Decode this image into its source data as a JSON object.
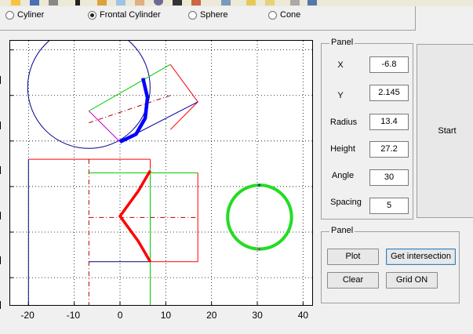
{
  "toolbar": {
    "icons": [
      "open-icon",
      "save-icon",
      "print-icon",
      "pointer-icon",
      "zoom-in-icon",
      "zoom-out-icon",
      "pan-icon",
      "rotate-icon",
      "datacursor-icon",
      "brush-icon",
      "link-icon",
      "colorbar-icon",
      "legend-icon"
    ]
  },
  "shape_options": [
    {
      "label": "Cyliner",
      "selected": false
    },
    {
      "label": "Frontal Cylinder",
      "selected": true
    },
    {
      "label": "Sphere",
      "selected": false
    },
    {
      "label": "Cone",
      "selected": false
    }
  ],
  "params_panel": {
    "title": "Panel",
    "fields": [
      {
        "label": "X",
        "value": "-6.8"
      },
      {
        "label": "Y",
        "value": "2.145"
      },
      {
        "label": "Radius",
        "value": "13.4"
      },
      {
        "label": "Height",
        "value": "27.2"
      },
      {
        "label": "Angle",
        "value": "30"
      },
      {
        "label": "Spacing",
        "value": "5"
      }
    ]
  },
  "start_label": "Start",
  "actions_panel": {
    "title": "Panel",
    "plot_label": "Plot",
    "intersection_label": "Get intersection",
    "clear_label": "Clear",
    "grid_label": "Grid ON"
  },
  "chart_data": {
    "type": "line",
    "xlim": [
      -24,
      42
    ],
    "ylim": [
      -16,
      42
    ],
    "grid": true,
    "x_ticks": [
      "-20",
      "-10",
      "0",
      "10",
      "20",
      "30",
      "40"
    ],
    "y_ticks_visible": false,
    "series": [
      {
        "color": "#00008b",
        "kind": "circle",
        "cx": -6.8,
        "cy": 31.8,
        "r": 13.4
      },
      {
        "color": "#ff0000",
        "kind": "polyline",
        "points": [
          [
            11,
            36.8
          ],
          [
            17,
            28.6
          ],
          [
            11,
            22.5
          ]
        ]
      },
      {
        "color": "#00cc00",
        "kind": "polyline",
        "points": [
          [
            -6.8,
            26.6
          ],
          [
            11,
            36.8
          ]
        ]
      },
      {
        "color": "#0000aa",
        "kind": "polyline",
        "points": [
          [
            17,
            28.6
          ],
          [
            0,
            19.8
          ]
        ]
      },
      {
        "color": "#cc00cc",
        "kind": "polyline",
        "points": [
          [
            -6.8,
            26.6
          ],
          [
            0,
            19.8
          ]
        ]
      },
      {
        "color": "#aa0000",
        "kind": "dashdot",
        "points": [
          [
            -6.8,
            24
          ],
          [
            11,
            30
          ]
        ]
      },
      {
        "color": "#0000ff",
        "kind": "thick-arc",
        "points": [
          [
            5,
            33.8
          ],
          [
            6,
            29.5
          ],
          [
            5.5,
            25
          ],
          [
            3.5,
            21.5
          ],
          [
            0,
            19.8
          ]
        ]
      },
      {
        "color": "#ff0000",
        "kind": "polyline",
        "points": [
          [
            -20,
            16
          ],
          [
            6.6,
            16
          ]
        ]
      },
      {
        "color": "#000080",
        "kind": "polyline",
        "points": [
          [
            -20,
            16
          ],
          [
            -20,
            -16
          ]
        ]
      },
      {
        "color": "#ff0000",
        "kind": "polyline",
        "points": [
          [
            6.6,
            16
          ],
          [
            6.6,
            14
          ]
        ]
      },
      {
        "color": "#00cc00",
        "kind": "polyline",
        "points": [
          [
            6.6,
            14
          ],
          [
            6.6,
            -16
          ]
        ]
      },
      {
        "color": "#aa0000",
        "kind": "dashdot",
        "points": [
          [
            -6.8,
            16
          ],
          [
            -6.8,
            -16
          ]
        ]
      },
      {
        "color": "#00cc00",
        "kind": "polyline",
        "points": [
          [
            -6.8,
            13
          ],
          [
            17,
            13
          ]
        ]
      },
      {
        "color": "#ff0000",
        "kind": "polyline",
        "points": [
          [
            17,
            13
          ],
          [
            17,
            -6.5
          ],
          [
            6.6,
            -6.5
          ]
        ]
      },
      {
        "color": "#000080",
        "kind": "polyline",
        "points": [
          [
            -6.8,
            -6.5
          ],
          [
            6.6,
            -6.5
          ]
        ]
      },
      {
        "color": "#aa0000",
        "kind": "dashdot",
        "points": [
          [
            -6.8,
            3.2
          ],
          [
            17,
            3.2
          ]
        ]
      },
      {
        "color": "#ff0000",
        "kind": "thick-poly",
        "points": [
          [
            6.6,
            13.5
          ],
          [
            4,
            9
          ],
          [
            0,
            3.5
          ],
          [
            4,
            -2
          ],
          [
            6.6,
            -6.5
          ]
        ]
      },
      {
        "color": "#22dd22",
        "kind": "thick-circle",
        "cx": 30.5,
        "cy": 3.3,
        "r": 7
      }
    ]
  }
}
